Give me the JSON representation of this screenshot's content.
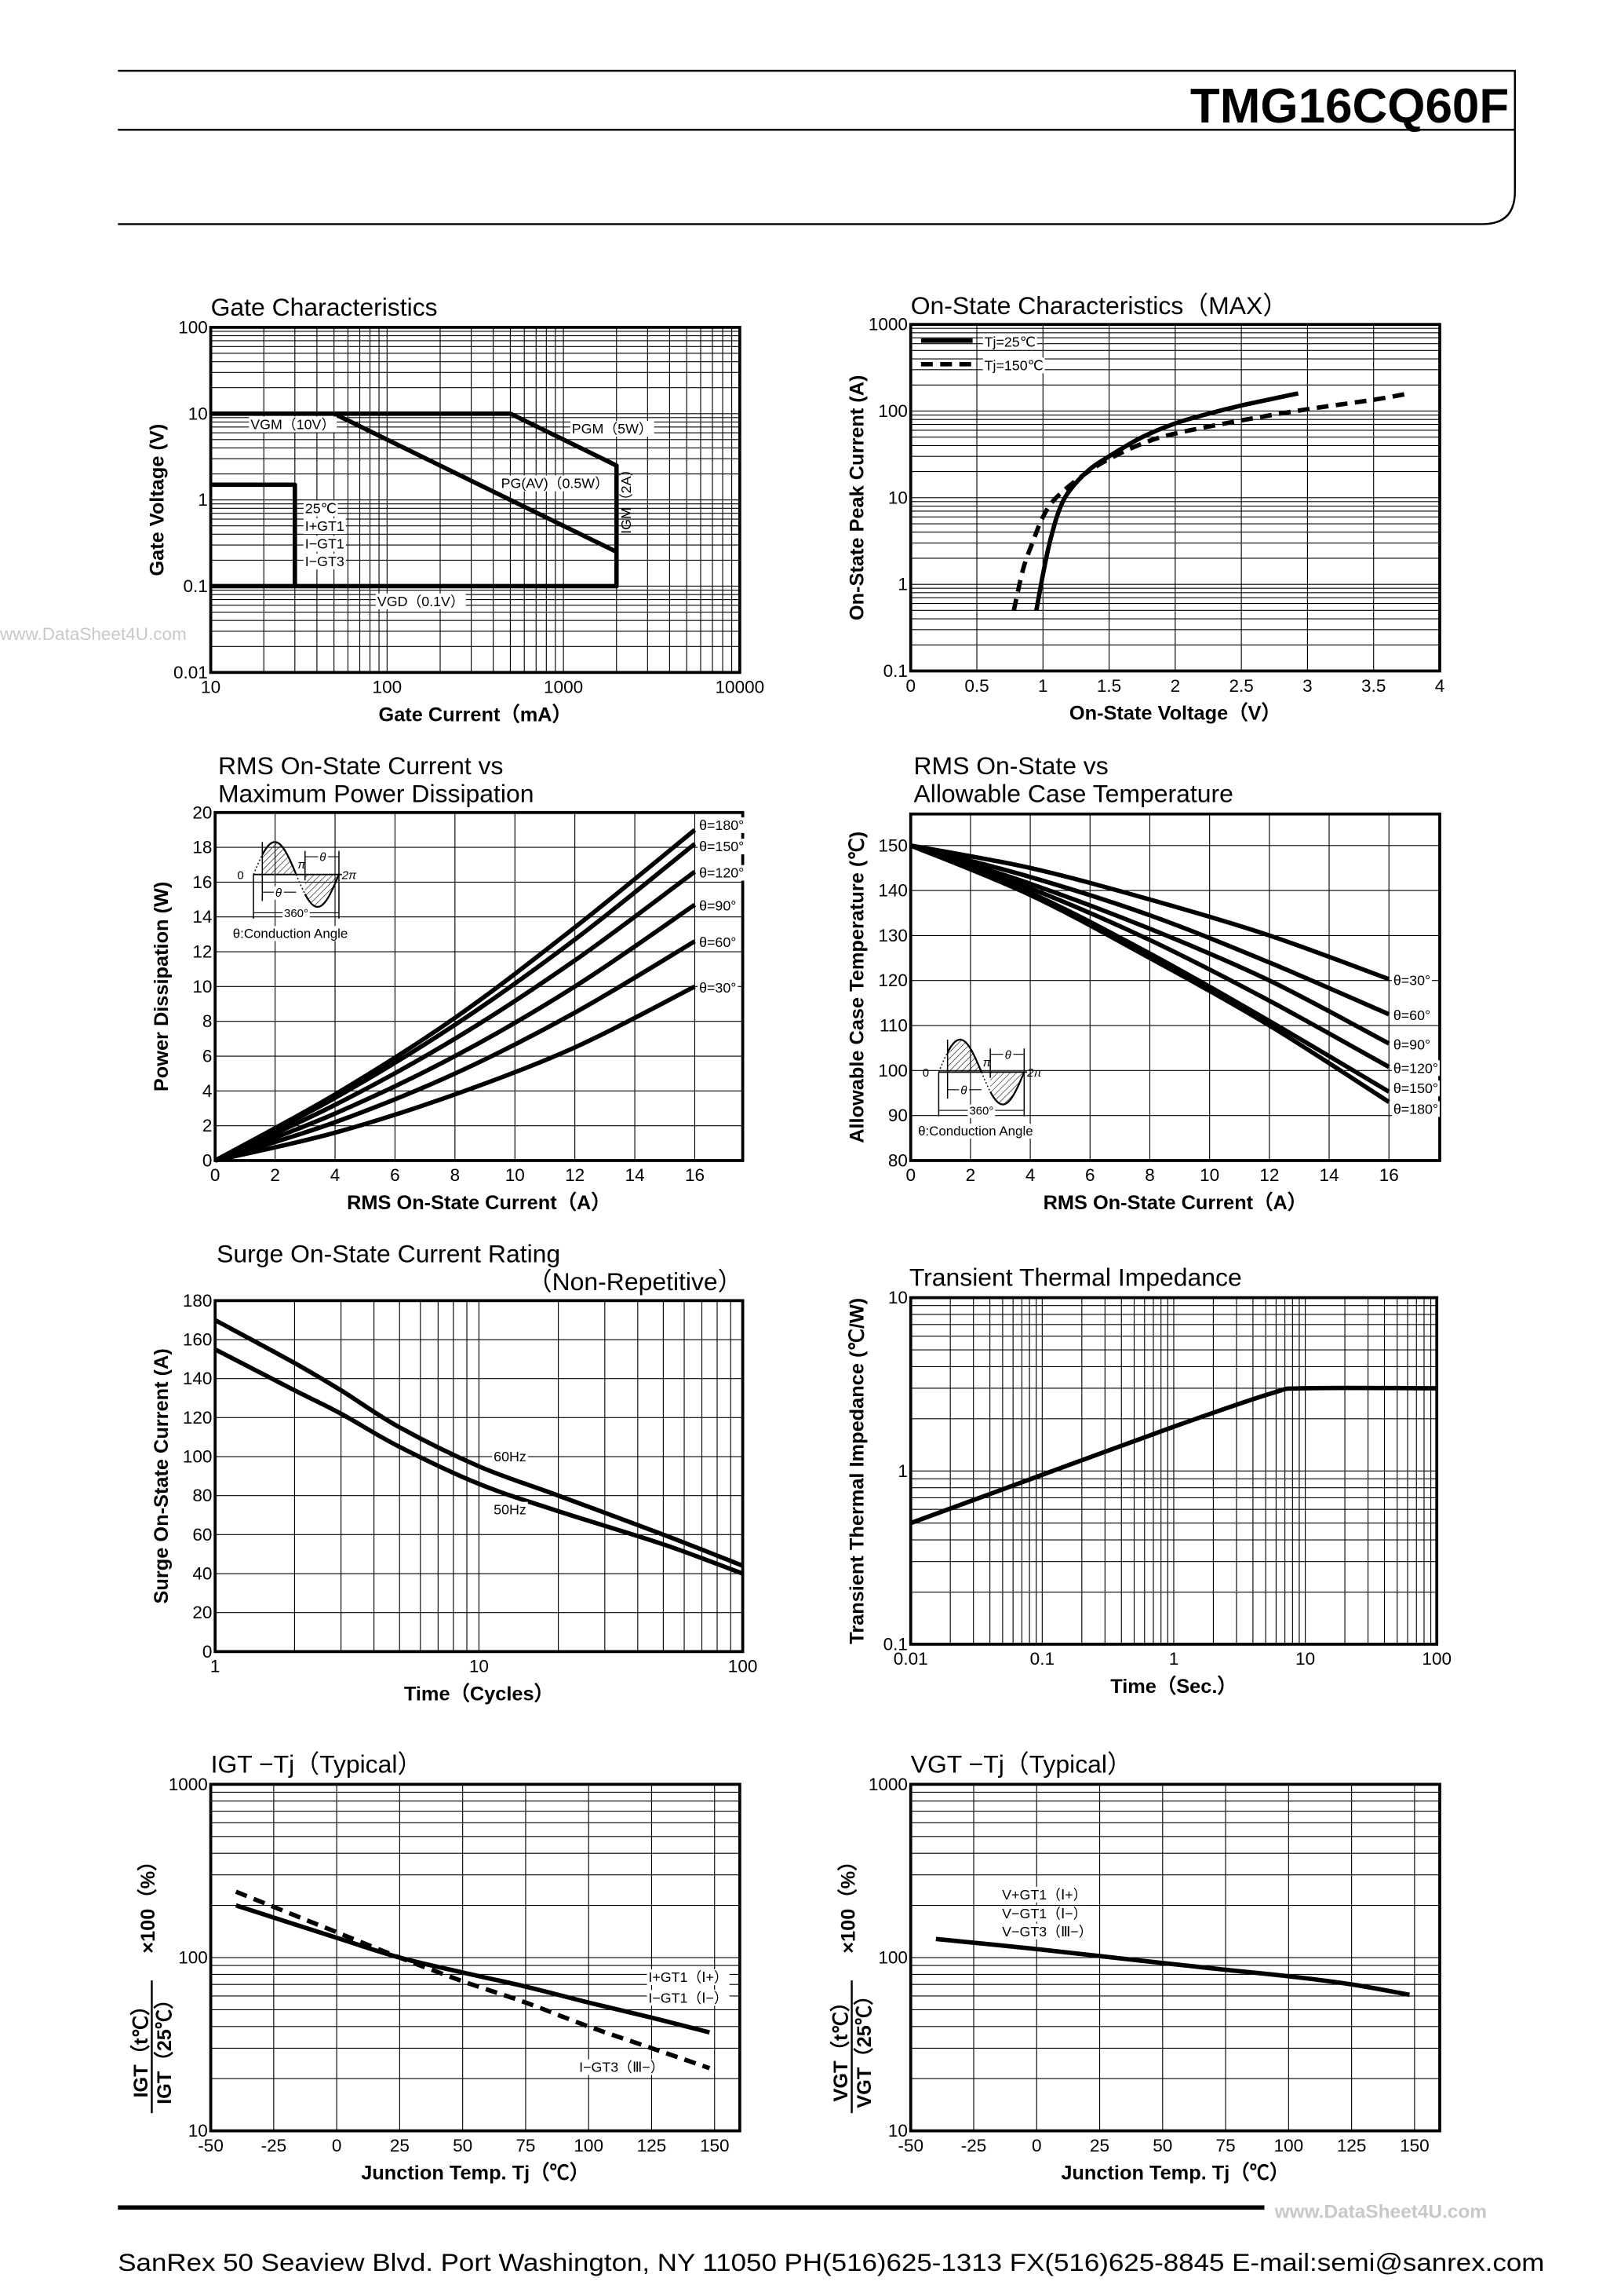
{
  "header": {
    "part_number": "TMG16CQ60F"
  },
  "watermarks": {
    "left": "www.DataSheet4U.com",
    "footer": "www.DataSheet4U.com"
  },
  "footer": {
    "text": "SanRex 50 Seaview Blvd. Port Washington, NY 11050 PH(516)625-1313 FX(516)625-8845 E-mail:semi@sanrex.com"
  },
  "inset_diagram": {
    "zero": "0",
    "pi": "π",
    "two_pi": "2π",
    "theta": "θ",
    "period": "360°",
    "caption": "θ:Conduction Angle"
  },
  "chart_data": [
    {
      "type": "line",
      "title": [
        "Gate Characteristics"
      ],
      "xlabel": "Gate Current（mA）",
      "ylabel": "Gate Voltage (V)",
      "xscale": "log",
      "yscale": "log",
      "xlim": [
        10,
        10000
      ],
      "ylim": [
        0.01,
        100
      ],
      "xticks": [
        10,
        100,
        1000,
        10000
      ],
      "yticks": [
        0.01,
        0.1,
        1,
        10,
        100
      ],
      "grid": true,
      "series": [
        {
          "style": "solid",
          "points": [
            [
              10,
              10
            ],
            [
              500,
              10
            ],
            [
              2000,
              2.5
            ],
            [
              2000,
              0.1
            ],
            [
              10,
              0.1
            ]
          ]
        },
        {
          "style": "solid",
          "points": [
            [
              50,
              10
            ],
            [
              2000,
              0.25
            ]
          ]
        },
        {
          "style": "solid",
          "points": [
            [
              10,
              1.5
            ],
            [
              30,
              1.5
            ],
            [
              30,
              0.1
            ]
          ]
        }
      ],
      "annotations": [
        "VGM（10V）",
        "PGM（5W）",
        "PG(AV)（0.5W）",
        "IGM（2A）",
        "VGD（0.1V）",
        "25℃",
        "I+GT1",
        "I−GT1",
        "I−GT3"
      ]
    },
    {
      "type": "line",
      "title": [
        "On-State Characteristics（MAX）"
      ],
      "xlabel": "On-State Voltage（V）",
      "ylabel": "On-State Peak Current (A)",
      "xscale": "linear",
      "yscale": "log",
      "xlim": [
        0,
        4
      ],
      "ylim": [
        0.1,
        1000
      ],
      "xticks": [
        0,
        0.5,
        1,
        1.5,
        2,
        2.5,
        3,
        3.5,
        4
      ],
      "yticks": [
        0.1,
        1,
        10,
        100,
        1000
      ],
      "grid": true,
      "legend": "top-left",
      "series": [
        {
          "name": "Tj=25℃",
          "style": "solid",
          "points": [
            [
              0.95,
              0.5
            ],
            [
              1.0,
              1.3
            ],
            [
              1.05,
              3
            ],
            [
              1.12,
              7
            ],
            [
              1.2,
              12
            ],
            [
              1.35,
              21
            ],
            [
              1.5,
              30
            ],
            [
              1.75,
              50
            ],
            [
              2.0,
              72
            ],
            [
              2.25,
              93
            ],
            [
              2.5,
              116
            ],
            [
              2.75,
              140
            ],
            [
              2.93,
              160
            ]
          ]
        },
        {
          "name": "Tj=150℃",
          "style": "dashed",
          "points": [
            [
              0.78,
              0.5
            ],
            [
              0.85,
              1.5
            ],
            [
              0.92,
              3
            ],
            [
              1.0,
              6
            ],
            [
              1.1,
              10
            ],
            [
              1.3,
              18
            ],
            [
              1.5,
              28
            ],
            [
              1.75,
              42
            ],
            [
              2.0,
              55
            ],
            [
              2.5,
              78
            ],
            [
              3.0,
              105
            ],
            [
              3.5,
              135
            ],
            [
              3.77,
              160
            ]
          ]
        }
      ]
    },
    {
      "type": "line",
      "title": [
        "RMS On-State Current vs",
        "Maximum Power Dissipation"
      ],
      "xlabel": "RMS On-State Current（A）",
      "ylabel": "Power Dissipation (W)",
      "xscale": "linear",
      "yscale": "linear",
      "xlim": [
        0,
        17.6
      ],
      "ylim": [
        0,
        20
      ],
      "xticks": [
        0,
        2,
        4,
        6,
        8,
        10,
        12,
        14,
        16
      ],
      "yticks": [
        0,
        2,
        4,
        6,
        8,
        10,
        12,
        14,
        16,
        18,
        20
      ],
      "grid": true,
      "series": [
        {
          "name": "θ=180°",
          "style": "solid",
          "points": [
            [
              0,
              0
            ],
            [
              4,
              3.8
            ],
            [
              8,
              8.2
            ],
            [
              12,
              13.4
            ],
            [
              16,
              19
            ]
          ]
        },
        {
          "name": "θ=150°",
          "style": "solid",
          "points": [
            [
              0,
              0
            ],
            [
              4,
              3.6
            ],
            [
              8,
              7.8
            ],
            [
              12,
              12.7
            ],
            [
              16,
              18.2
            ]
          ]
        },
        {
          "name": "θ=120°",
          "style": "solid",
          "points": [
            [
              0,
              0
            ],
            [
              4,
              3.2
            ],
            [
              8,
              7.0
            ],
            [
              12,
              11.5
            ],
            [
              16,
              16.6
            ]
          ]
        },
        {
          "name": "θ=90°",
          "style": "solid",
          "points": [
            [
              0,
              0
            ],
            [
              4,
              2.7
            ],
            [
              8,
              6.0
            ],
            [
              12,
              10.0
            ],
            [
              16,
              14.7
            ]
          ]
        },
        {
          "name": "θ=60°",
          "style": "solid",
          "points": [
            [
              0,
              0
            ],
            [
              4,
              2.2
            ],
            [
              8,
              5.0
            ],
            [
              12,
              8.5
            ],
            [
              16,
              12.6
            ]
          ]
        },
        {
          "name": "θ=30°",
          "style": "solid",
          "points": [
            [
              0,
              0
            ],
            [
              4,
              1.6
            ],
            [
              8,
              3.8
            ],
            [
              12,
              6.5
            ],
            [
              16,
              10
            ]
          ]
        }
      ]
    },
    {
      "type": "line",
      "title": [
        "RMS On-State vs",
        "Allowable Case Temperature"
      ],
      "xlabel": "RMS On-State Current（A）",
      "ylabel": "Allowable Case Temperature (℃)",
      "xscale": "linear",
      "yscale": "linear",
      "xlim": [
        0,
        17.7
      ],
      "ylim": [
        80,
        157
      ],
      "xticks": [
        0,
        2,
        4,
        6,
        8,
        10,
        12,
        14,
        16
      ],
      "yticks": [
        80,
        90,
        100,
        110,
        120,
        130,
        140,
        150
      ],
      "grid": true,
      "series": [
        {
          "name": "θ=30°",
          "style": "solid",
          "points": [
            [
              0,
              150
            ],
            [
              4,
              145
            ],
            [
              8,
              138
            ],
            [
              12,
              130
            ],
            [
              16,
              120.3
            ]
          ]
        },
        {
          "name": "θ=60°",
          "style": "solid",
          "points": [
            [
              0,
              150
            ],
            [
              4,
              143
            ],
            [
              8,
              134.5
            ],
            [
              12,
              124
            ],
            [
              16,
              112.5
            ]
          ]
        },
        {
          "name": "θ=90°",
          "style": "solid",
          "points": [
            [
              0,
              150
            ],
            [
              4,
              141.5
            ],
            [
              8,
              131.5
            ],
            [
              12,
              120
            ],
            [
              16,
              106
            ]
          ]
        },
        {
          "name": "θ=120°",
          "style": "solid",
          "points": [
            [
              0,
              150
            ],
            [
              4,
              140.5
            ],
            [
              8,
              129
            ],
            [
              12,
              115.5
            ],
            [
              16,
              100.8
            ]
          ]
        },
        {
          "name": "θ=150°",
          "style": "solid",
          "points": [
            [
              0,
              150
            ],
            [
              4,
              139.5
            ],
            [
              8,
              126
            ],
            [
              12,
              111
            ],
            [
              16,
              95.3
            ]
          ]
        },
        {
          "name": "θ=180°",
          "style": "solid",
          "points": [
            [
              0,
              150
            ],
            [
              4,
              139
            ],
            [
              8,
              125
            ],
            [
              12,
              110
            ],
            [
              16,
              93
            ]
          ]
        }
      ]
    },
    {
      "type": "line",
      "title": [
        "Surge On-State Current Rating",
        "（Non-Repetitive）"
      ],
      "xlabel": "Time（Cycles）",
      "ylabel": "Surge On-State Current (A)",
      "xscale": "log",
      "yscale": "linear",
      "xlim": [
        1,
        100
      ],
      "ylim": [
        0,
        180
      ],
      "xticks": [
        1,
        10,
        100
      ],
      "yticks": [
        0,
        20,
        40,
        60,
        80,
        100,
        120,
        140,
        160,
        180
      ],
      "grid": true,
      "series": [
        {
          "name": "60Hz",
          "style": "solid",
          "points": [
            [
              1,
              170
            ],
            [
              2,
              148
            ],
            [
              3,
              134
            ],
            [
              5,
              115
            ],
            [
              10,
              95
            ],
            [
              20,
              80
            ],
            [
              50,
              60
            ],
            [
              100,
              44
            ]
          ]
        },
        {
          "name": "50Hz",
          "style": "solid",
          "points": [
            [
              1,
              155
            ],
            [
              2,
              134
            ],
            [
              3,
              122
            ],
            [
              5,
              105
            ],
            [
              10,
              86
            ],
            [
              20,
              72
            ],
            [
              50,
              55
            ],
            [
              100,
              40
            ]
          ]
        }
      ]
    },
    {
      "type": "line",
      "title": [
        "Transient Thermal Impedance"
      ],
      "xlabel": "Time（Sec.）",
      "ylabel": "Transient Thermal Impedance (℃/W)",
      "xscale": "log",
      "yscale": "log",
      "xlim": [
        0.01,
        100
      ],
      "ylim": [
        0.1,
        10
      ],
      "xticks": [
        0.01,
        0.1,
        1,
        10,
        100
      ],
      "yticks": [
        0.1,
        1,
        10
      ],
      "grid": true,
      "series": [
        {
          "style": "solid",
          "points": [
            [
              0.01,
              0.5
            ],
            [
              0.1,
              0.95
            ],
            [
              1,
              1.8
            ],
            [
              5.5,
              2.8
            ],
            [
              10,
              3
            ],
            [
              100,
              3
            ]
          ]
        }
      ]
    },
    {
      "type": "line",
      "title": [
        "IGT −Tj（Typical）"
      ],
      "xlabel": "Junction Temp. Tj（℃）",
      "ylabel": {
        "numerator": "IGT（t℃）",
        "denominator": "IGT（25℃）",
        "factor": "×100（%）"
      },
      "xscale": "linear",
      "yscale": "log",
      "xlim": [
        -50,
        160
      ],
      "ylim": [
        10,
        1000
      ],
      "xticks": [
        -50,
        -25,
        0,
        25,
        50,
        75,
        100,
        125,
        150
      ],
      "yticks": [
        10,
        100,
        1000
      ],
      "grid": true,
      "series": [
        {
          "style": "solid",
          "points": [
            [
              -40,
              200
            ],
            [
              0,
              130
            ],
            [
              25,
              100
            ],
            [
              50,
              82
            ],
            [
              75,
              68
            ],
            [
              100,
              55
            ],
            [
              125,
              45
            ],
            [
              148,
              37
            ]
          ]
        },
        {
          "style": "dashed",
          "points": [
            [
              -40,
              240
            ],
            [
              0,
              140
            ],
            [
              25,
              100
            ],
            [
              50,
              73
            ],
            [
              75,
              55
            ],
            [
              100,
              40
            ],
            [
              125,
              30
            ],
            [
              148,
              23
            ]
          ]
        }
      ],
      "annotations": [
        "I+GT1（Ⅰ+）",
        "I−GT1（Ⅰ−）",
        "I−GT3（Ⅲ−）"
      ]
    },
    {
      "type": "line",
      "title": [
        "VGT −Tj（Typical）"
      ],
      "xlabel": "Junction Temp. Tj（℃）",
      "ylabel": {
        "numerator": "VGT（t℃）",
        "denominator": "VGT（25℃）",
        "factor": "×100（%）"
      },
      "xscale": "linear",
      "yscale": "log",
      "xlim": [
        -50,
        160
      ],
      "ylim": [
        10,
        1000
      ],
      "xticks": [
        -50,
        -25,
        0,
        25,
        50,
        75,
        100,
        125,
        150
      ],
      "yticks": [
        10,
        100,
        1000
      ],
      "grid": true,
      "series": [
        {
          "style": "solid",
          "points": [
            [
              -40,
              128
            ],
            [
              0,
              112
            ],
            [
              25,
              102
            ],
            [
              50,
              93
            ],
            [
              75,
              85
            ],
            [
              100,
              78
            ],
            [
              125,
              70
            ],
            [
              148,
              61
            ]
          ]
        }
      ],
      "annotations": [
        "V+GT1（Ⅰ+）",
        "V−GT1（Ⅰ−）",
        "V−GT3（Ⅲ−）"
      ]
    }
  ]
}
